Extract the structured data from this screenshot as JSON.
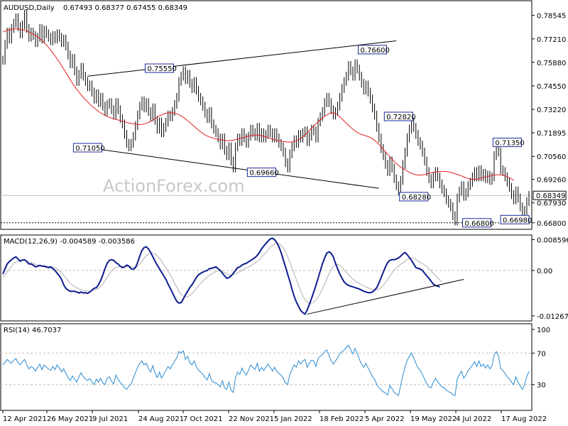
{
  "header": {
    "symbol": "AUDUSD,Daily",
    "ohlc": "0.67493 0.68377 0.67455 0.68349"
  },
  "watermark": "ActionForex.com",
  "chart_data": [
    {
      "type": "candlestick",
      "name": "AUDUSD,Daily",
      "y_ticks": [
        "0.78545",
        "0.77210",
        "0.75880",
        "0.74550",
        "0.73220",
        "0.71895",
        "0.70560",
        "0.69260",
        "0.67930",
        "0.66800"
      ],
      "ylim": [
        0.6655,
        0.7925
      ],
      "current_price": "0.68349",
      "ma_color": "#e02020",
      "price_color": "#000000",
      "annotations": [
        {
          "label": "0.71050",
          "x": 39,
          "y": 0.7105
        },
        {
          "label": "0.75550",
          "x": 72,
          "y": 0.7555
        },
        {
          "label": "0.69660",
          "x": 119,
          "y": 0.6966
        },
        {
          "label": "0.76600",
          "x": 170,
          "y": 0.766
        },
        {
          "label": "0.72820",
          "x": 182,
          "y": 0.7282
        },
        {
          "label": "0.68280",
          "x": 189,
          "y": 0.6828
        },
        {
          "label": "0.66800",
          "x": 218,
          "y": 0.668
        },
        {
          "label": "0.71350",
          "x": 232,
          "y": 0.7135
        },
        {
          "label": "0.66980",
          "x": 243,
          "y": 0.6698
        }
      ],
      "trendlines": [
        {
          "from": [
            39,
            0.751
          ],
          "to": [
            181,
            0.771
          ]
        },
        {
          "from": [
            39,
            0.7105
          ],
          "to": [
            173,
            0.6875
          ]
        }
      ],
      "price_close": [
        0.76,
        0.769,
        0.776,
        0.772,
        0.778,
        0.781,
        0.784,
        0.779,
        0.775,
        0.78,
        0.786,
        0.778,
        0.773,
        0.776,
        0.774,
        0.77,
        0.773,
        0.778,
        0.772,
        0.777,
        0.775,
        0.773,
        0.771,
        0.774,
        0.772,
        0.775,
        0.773,
        0.77,
        0.772,
        0.768,
        0.763,
        0.758,
        0.761,
        0.754,
        0.748,
        0.752,
        0.756,
        0.751,
        0.748,
        0.745,
        0.746,
        0.742,
        0.738,
        0.741,
        0.736,
        0.739,
        0.734,
        0.731,
        0.735,
        0.736,
        0.732,
        0.729,
        0.736,
        0.732,
        0.727,
        0.724,
        0.718,
        0.713,
        0.711,
        0.713,
        0.717,
        0.723,
        0.729,
        0.734,
        0.737,
        0.733,
        0.736,
        0.731,
        0.728,
        0.733,
        0.726,
        0.721,
        0.725,
        0.719,
        0.722,
        0.725,
        0.729,
        0.728,
        0.731,
        0.735,
        0.739,
        0.748,
        0.751,
        0.754,
        0.749,
        0.752,
        0.747,
        0.744,
        0.748,
        0.743,
        0.739,
        0.737,
        0.734,
        0.73,
        0.727,
        0.731,
        0.724,
        0.721,
        0.719,
        0.716,
        0.712,
        0.716,
        0.709,
        0.706,
        0.711,
        0.703,
        0.699,
        0.711,
        0.716,
        0.714,
        0.719,
        0.716,
        0.713,
        0.717,
        0.721,
        0.719,
        0.717,
        0.722,
        0.716,
        0.719,
        0.716,
        0.718,
        0.721,
        0.719,
        0.716,
        0.719,
        0.716,
        0.713,
        0.711,
        0.708,
        0.702,
        0.699,
        0.707,
        0.711,
        0.715,
        0.713,
        0.718,
        0.716,
        0.719,
        0.72,
        0.714,
        0.717,
        0.721,
        0.72,
        0.716,
        0.725,
        0.728,
        0.731,
        0.736,
        0.739,
        0.736,
        0.732,
        0.729,
        0.731,
        0.734,
        0.739,
        0.744,
        0.748,
        0.751,
        0.757,
        0.754,
        0.751,
        0.758,
        0.755,
        0.751,
        0.747,
        0.743,
        0.746,
        0.742,
        0.738,
        0.733,
        0.729,
        0.722,
        0.716,
        0.71,
        0.706,
        0.701,
        0.697,
        0.703,
        0.699,
        0.693,
        0.689,
        0.686,
        0.692,
        0.701,
        0.708,
        0.716,
        0.721,
        0.725,
        0.722,
        0.718,
        0.714,
        0.712,
        0.708,
        0.703,
        0.697,
        0.693,
        0.69,
        0.694,
        0.697,
        0.694,
        0.69,
        0.687,
        0.685,
        0.681,
        0.679,
        0.677,
        0.672,
        0.669,
        0.682,
        0.686,
        0.689,
        0.683,
        0.685,
        0.689,
        0.691,
        0.694,
        0.697,
        0.694,
        0.698,
        0.694,
        0.696,
        0.693,
        0.695,
        0.692,
        0.694,
        0.706,
        0.711,
        0.708,
        0.698,
        0.697,
        0.694,
        0.691,
        0.688,
        0.684,
        0.681,
        0.686,
        0.682,
        0.677,
        0.672,
        0.675,
        0.68,
        0.6835
      ],
      "ma_close": [
        0.776,
        0.7765,
        0.777,
        0.7772,
        0.7775,
        0.7777,
        0.7778,
        0.7777,
        0.7775,
        0.7773,
        0.777,
        0.7765,
        0.776,
        0.7755,
        0.7748,
        0.774,
        0.7732,
        0.7722,
        0.7712,
        0.77,
        0.7687,
        0.7673,
        0.7658,
        0.7642,
        0.7625,
        0.7607,
        0.7589,
        0.757,
        0.755,
        0.753,
        0.751,
        0.749,
        0.747,
        0.7452,
        0.7435,
        0.742,
        0.7405,
        0.739,
        0.7377,
        0.7365,
        0.7352,
        0.734,
        0.733,
        0.732,
        0.731,
        0.7302,
        0.7295,
        0.7288,
        0.7282,
        0.7277,
        0.7272,
        0.7268,
        0.7265,
        0.7262,
        0.7259,
        0.7255,
        0.7252,
        0.7248,
        0.7245,
        0.7242,
        0.724,
        0.7238,
        0.7236,
        0.7236,
        0.7237,
        0.724,
        0.7243,
        0.7248,
        0.7254,
        0.7262,
        0.727,
        0.7278,
        0.7285,
        0.729,
        0.7296,
        0.73,
        0.7302,
        0.7303,
        0.7302,
        0.73,
        0.7297,
        0.7292,
        0.7285,
        0.7277,
        0.7268,
        0.7258,
        0.7248,
        0.7237,
        0.7226,
        0.7215,
        0.7204,
        0.7195,
        0.7186,
        0.7178,
        0.7171,
        0.7166,
        0.7162,
        0.7158,
        0.7155,
        0.7152,
        0.715,
        0.7148,
        0.7146,
        0.7145,
        0.7145,
        0.7146,
        0.7148,
        0.715,
        0.7153,
        0.7157,
        0.716,
        0.7164,
        0.7167,
        0.717,
        0.7173,
        0.7175,
        0.7176,
        0.7177,
        0.7176,
        0.7173,
        0.717,
        0.7166,
        0.7162,
        0.7158,
        0.7154,
        0.715,
        0.7147,
        0.7144,
        0.7142,
        0.714,
        0.7138,
        0.7137,
        0.7137,
        0.7138,
        0.714,
        0.7144,
        0.715,
        0.7158,
        0.7167,
        0.7178,
        0.719,
        0.7203,
        0.7216,
        0.7229,
        0.7241,
        0.7252,
        0.7263,
        0.7273,
        0.7282,
        0.729,
        0.7297,
        0.7302,
        0.7303,
        0.7298,
        0.729,
        0.728,
        0.7268,
        0.7256,
        0.7244,
        0.7232,
        0.722,
        0.721,
        0.72,
        0.7192,
        0.7185,
        0.718,
        0.7176,
        0.7172,
        0.7168,
        0.7163,
        0.7156,
        0.7147,
        0.7136,
        0.7124,
        0.711,
        0.7096,
        0.7082,
        0.7068,
        0.7054,
        0.7041,
        0.7028,
        0.7016,
        0.7005,
        0.6995,
        0.6987,
        0.698,
        0.6973,
        0.6966,
        0.696,
        0.6956,
        0.6952,
        0.695,
        0.695,
        0.6951,
        0.6953,
        0.6956,
        0.696,
        0.6963,
        0.6966,
        0.6968,
        0.697,
        0.6971,
        0.6971,
        0.6971,
        0.697,
        0.6968,
        0.6965,
        0.6962,
        0.6958,
        0.6954,
        0.695,
        0.6945,
        0.694,
        0.6935,
        0.6931,
        0.6928,
        0.6926,
        0.6926,
        0.6928,
        0.693,
        0.6933,
        0.6936,
        0.6939,
        0.6942,
        0.6945,
        0.6948,
        0.695,
        0.6952,
        0.6952,
        0.6951,
        0.6949,
        0.6946,
        0.6941,
        0.6935,
        0.6928,
        0.692
      ]
    },
    {
      "type": "line",
      "name": "MACD(12,26,9) -0.004589 -0.003586",
      "title": "MACD(12,26,9)",
      "values_label": "-0.004589 -0.003586",
      "y_ticks": [
        "0.008596",
        "0.00",
        "-0.01267"
      ],
      "ylim": [
        -0.0135,
        0.0093
      ],
      "macd_color": "#0d1b8f",
      "signal_color": "#b0b0b0",
      "macd": [
        -0.001,
        0.0005,
        0.0018,
        0.0025,
        0.003,
        0.0035,
        0.0038,
        0.0032,
        0.0026,
        0.0029,
        0.003,
        0.0025,
        0.0018,
        0.0018,
        0.0015,
        0.001,
        0.0012,
        0.0014,
        0.0012,
        0.0012,
        0.001,
        0.0008,
        0.001,
        0.0005,
        0.0,
        -0.0008,
        -0.0015,
        -0.0025,
        -0.004,
        -0.005,
        -0.0055,
        -0.0058,
        -0.0058,
        -0.0058,
        -0.006,
        -0.0063,
        -0.006,
        -0.0063,
        -0.0062,
        -0.0064,
        -0.006,
        -0.0055,
        -0.005,
        -0.0048,
        -0.004,
        -0.0028,
        -0.0012,
        0.0005,
        0.002,
        0.0028,
        0.003,
        0.0028,
        0.0022,
        0.0018,
        0.0012,
        0.0008,
        0.001,
        0.0015,
        0.0012,
        0.0005,
        0.0003,
        0.0008,
        0.0022,
        0.004,
        0.0056,
        0.0064,
        0.0066,
        0.006,
        0.005,
        0.0038,
        0.0026,
        0.0015,
        0.0005,
        -0.0005,
        -0.0015,
        -0.0025,
        -0.0038,
        -0.005,
        -0.0062,
        -0.0075,
        -0.0086,
        -0.0091,
        -0.009,
        -0.008,
        -0.0068,
        -0.0058,
        -0.0048,
        -0.004,
        -0.003,
        -0.002,
        -0.0012,
        -0.0008,
        -0.0005,
        -0.0002,
        0.0,
        0.0005,
        0.0006,
        0.0008,
        0.001,
        0.0005,
        0.0,
        -0.0008,
        -0.0015,
        -0.0022,
        -0.002,
        -0.0015,
        -0.0008,
        0.0,
        0.0008,
        0.001,
        0.0015,
        0.0018,
        0.002,
        0.0024,
        0.0028,
        0.0032,
        0.0036,
        0.0042,
        0.005,
        0.006,
        0.0068,
        0.0075,
        0.0082,
        0.0088,
        0.009,
        0.0086,
        0.0078,
        0.0066,
        0.005,
        0.003,
        0.001,
        -0.001,
        -0.003,
        -0.0052,
        -0.0072,
        -0.0088,
        -0.01,
        -0.0112,
        -0.0118,
        -0.0122,
        -0.011,
        -0.0095,
        -0.0078,
        -0.006,
        -0.0042,
        -0.0022,
        -0.0002,
        0.0018,
        0.0035,
        0.0048,
        0.0052,
        0.0048,
        0.0038,
        0.002,
        0.0005,
        -0.001,
        -0.0022,
        -0.0032,
        -0.0038,
        -0.0042,
        -0.0044,
        -0.0046,
        -0.0048,
        -0.005,
        -0.0052,
        -0.0055,
        -0.0058,
        -0.006,
        -0.0062,
        -0.0062,
        -0.006,
        -0.0055,
        -0.0048,
        -0.0035,
        -0.002,
        -0.0005,
        0.001,
        0.0022,
        0.0028,
        0.003,
        0.003,
        0.0032,
        0.0035,
        0.004,
        0.0046,
        0.005,
        0.0044,
        0.0036,
        0.0028,
        0.0018,
        0.0008,
        0.0006,
        0.0004,
        0.0,
        -0.0008,
        -0.0015,
        -0.0022,
        -0.003,
        -0.0038,
        -0.0042,
        -0.0044,
        -0.0046
      ],
      "signal": [
        -0.002,
        -0.0012,
        -0.0004,
        0.0004,
        0.0012,
        0.0018,
        0.0024,
        0.0026,
        0.0027,
        0.0028,
        0.0028,
        0.0027,
        0.0024,
        0.0022,
        0.002,
        0.0017,
        0.0015,
        0.0014,
        0.0013,
        0.0013,
        0.0012,
        0.0011,
        0.001,
        0.0009,
        0.0007,
        0.0004,
        0.0,
        -0.0006,
        -0.0013,
        -0.0021,
        -0.0029,
        -0.0036,
        -0.0041,
        -0.0045,
        -0.0049,
        -0.0052,
        -0.0054,
        -0.0056,
        -0.0057,
        -0.0058,
        -0.0058,
        -0.0057,
        -0.0055,
        -0.0053,
        -0.005,
        -0.0045,
        -0.0038,
        -0.0029,
        -0.0019,
        -0.001,
        -0.0002,
        0.0004,
        0.0008,
        0.001,
        0.0011,
        0.0011,
        0.0011,
        0.0011,
        0.0011,
        0.001,
        0.0009,
        0.0009,
        0.0012,
        0.0018,
        0.0026,
        0.0034,
        0.0041,
        0.0046,
        0.0049,
        0.0049,
        0.0046,
        0.0041,
        0.0034,
        0.0026,
        0.0017,
        0.0008,
        -0.0002,
        -0.0012,
        -0.0023,
        -0.0035,
        -0.0047,
        -0.0058,
        -0.0067,
        -0.0072,
        -0.0074,
        -0.0073,
        -0.007,
        -0.0065,
        -0.0058,
        -0.0051,
        -0.0043,
        -0.0036,
        -0.003,
        -0.0024,
        -0.0019,
        -0.0014,
        -0.001,
        -0.0006,
        -0.0003,
        -0.0001,
        -0.0001,
        -0.0003,
        -0.0006,
        -0.0009,
        -0.0012,
        -0.0013,
        -0.0012,
        -0.001,
        -0.0006,
        -0.0003,
        0.0,
        0.0004,
        0.0007,
        0.001,
        0.0013,
        0.0017,
        0.0021,
        0.0025,
        0.003,
        0.0036,
        0.0043,
        0.005,
        0.0057,
        0.0064,
        0.007,
        0.0074,
        0.0076,
        0.0075,
        0.0071,
        0.0063,
        0.0052,
        0.0039,
        0.0024,
        0.0008,
        -0.0009,
        -0.0026,
        -0.0042,
        -0.0057,
        -0.0071,
        -0.0082,
        -0.0089,
        -0.0092,
        -0.0091,
        -0.0088,
        -0.0082,
        -0.0074,
        -0.0064,
        -0.0052,
        -0.0038,
        -0.0024,
        -0.001,
        0.0002,
        0.0011,
        0.0016,
        0.0017,
        0.0014,
        0.0009,
        0.0002,
        -0.0005,
        -0.0012,
        -0.0018,
        -0.0024,
        -0.0029,
        -0.0033,
        -0.0037,
        -0.004,
        -0.0043,
        -0.0046,
        -0.0049,
        -0.0051,
        -0.0053,
        -0.0054,
        -0.0054,
        -0.0052,
        -0.0048,
        -0.0042,
        -0.0034,
        -0.0025,
        -0.0016,
        -0.0007,
        0.0001,
        0.0007,
        0.0012,
        0.0017,
        0.0021,
        0.0026,
        0.0031,
        0.0034,
        0.0035,
        0.0034,
        0.0031,
        0.0026,
        0.0022,
        0.0019,
        0.0015,
        0.001,
        0.0005,
        -0.0001,
        -0.0008,
        -0.0015,
        -0.0021,
        -0.0027,
        -0.0032
      ],
      "trendline": {
        "from_index": 140,
        "to_index": 212,
        "from": -0.0122,
        "to": -0.0025
      }
    },
    {
      "type": "line",
      "name": "RSI(14) 46.7037",
      "title": "RSI(14)",
      "values_label": "46.7037",
      "y_ticks": [
        "100",
        "70",
        "30"
      ],
      "ylim": [
        0,
        100
      ],
      "levels": [
        70,
        30
      ],
      "line_color": "#2a8bd0",
      "values": [
        55,
        58,
        62,
        59,
        57,
        61,
        63,
        58,
        55,
        59,
        62,
        55,
        50,
        53,
        51,
        47,
        52,
        56,
        49,
        55,
        52,
        50,
        48,
        53,
        49,
        55,
        51,
        46,
        50,
        44,
        39,
        35,
        41,
        37,
        33,
        40,
        45,
        40,
        37,
        35,
        38,
        33,
        30,
        37,
        33,
        38,
        32,
        30,
        38,
        40,
        34,
        31,
        42,
        37,
        33,
        30,
        26,
        24,
        28,
        31,
        38,
        45,
        52,
        57,
        60,
        55,
        57,
        50,
        46,
        54,
        45,
        39,
        46,
        38,
        43,
        48,
        53,
        50,
        55,
        60,
        64,
        72,
        70,
        73,
        62,
        66,
        58,
        55,
        60,
        53,
        48,
        46,
        43,
        39,
        36,
        44,
        35,
        33,
        32,
        30,
        27,
        35,
        26,
        24,
        33,
        23,
        20,
        39,
        46,
        43,
        51,
        46,
        42,
        48,
        55,
        52,
        49,
        57,
        47,
        52,
        48,
        52,
        56,
        52,
        47,
        52,
        47,
        44,
        42,
        38,
        32,
        30,
        43,
        49,
        55,
        52,
        60,
        56,
        60,
        62,
        52,
        57,
        61,
        60,
        53,
        63,
        66,
        68,
        72,
        74,
        67,
        60,
        56,
        60,
        64,
        69,
        72,
        74,
        77,
        80,
        74,
        69,
        76,
        70,
        62,
        56,
        52,
        57,
        51,
        46,
        40,
        37,
        30,
        26,
        23,
        21,
        19,
        17,
        29,
        25,
        20,
        18,
        16,
        29,
        42,
        52,
        61,
        66,
        70,
        64,
        57,
        51,
        48,
        43,
        37,
        31,
        27,
        26,
        33,
        38,
        34,
        30,
        27,
        26,
        23,
        21,
        20,
        17,
        16,
        37,
        43,
        47,
        38,
        42,
        48,
        51,
        55,
        59,
        53,
        60,
        53,
        56,
        51,
        55,
        50,
        54,
        68,
        72,
        66,
        50,
        48,
        44,
        40,
        37,
        33,
        30,
        40,
        33,
        28,
        24,
        30,
        40,
        46.7
      ]
    }
  ],
  "x_axis": {
    "labels": [
      "12 Apr 2021",
      "26 May 2021",
      "9 Jul 2021",
      "24 Aug 2021",
      "7 Oct 2021",
      "22 Nov 2021",
      "5 Jan 2022",
      "18 Feb 2022",
      "5 Apr 2022",
      "19 May 2022",
      "4 Jul 2022",
      "17 Aug 2022"
    ]
  }
}
